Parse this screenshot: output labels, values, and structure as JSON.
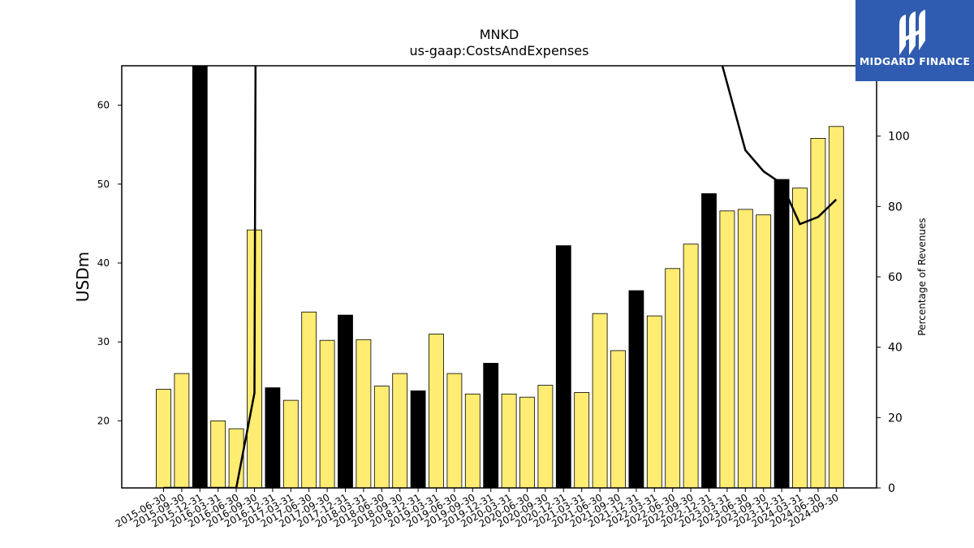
{
  "chart_data": {
    "type": "bar",
    "title": "MNKD",
    "subtitle": "us-gaap:CostsAndExpenses",
    "ylabel": "USDm",
    "ylabel_right": "Percentage of Revenues",
    "ylim": [
      11.5,
      65
    ],
    "ylim_right": [
      0,
      120
    ],
    "yticks": [
      20,
      30,
      40,
      50,
      60
    ],
    "yticks_right": [
      0,
      20,
      40,
      60,
      80,
      100
    ],
    "grid": false,
    "bar_colors": {
      "quarter": "#ffec72",
      "year_end": "#000000"
    },
    "categories": [
      "2015-06-30",
      "2015-09-30",
      "2015-12-31",
      "2016-03-31",
      "2016-06-30",
      "2016-09-30",
      "2016-12-31",
      "2017-03-31",
      "2017-06-30",
      "2017-09-30",
      "2017-12-31",
      "2018-03-31",
      "2018-06-30",
      "2018-09-30",
      "2018-12-31",
      "2019-03-31",
      "2019-06-30",
      "2019-09-30",
      "2019-12-31",
      "2020-03-31",
      "2020-06-30",
      "2020-09-30",
      "2020-12-31",
      "2021-03-31",
      "2021-06-30",
      "2021-09-30",
      "2021-12-31",
      "2022-03-31",
      "2022-06-30",
      "2022-09-30",
      "2022-12-31",
      "2023-03-31",
      "2023-06-30",
      "2023-09-30",
      "2023-12-31",
      "2024-03-31",
      "2024-06-30",
      "2024-09-30"
    ],
    "values": [
      24.0,
      26.0,
      66.0,
      20.0,
      19.0,
      44.2,
      24.2,
      22.6,
      33.8,
      30.2,
      33.4,
      30.3,
      24.4,
      26.0,
      23.8,
      31.0,
      26.0,
      23.4,
      27.3,
      23.4,
      23.0,
      24.5,
      42.2,
      23.6,
      33.6,
      28.9,
      36.5,
      33.3,
      39.3,
      42.4,
      48.8,
      46.6,
      46.8,
      46.1,
      50.6,
      49.5,
      55.8,
      57.3
    ],
    "year_end": [
      false,
      false,
      true,
      false,
      false,
      false,
      true,
      false,
      false,
      false,
      true,
      false,
      false,
      false,
      true,
      false,
      false,
      false,
      true,
      false,
      false,
      false,
      true,
      false,
      false,
      false,
      true,
      false,
      false,
      false,
      true,
      false,
      false,
      false,
      true,
      false,
      false,
      false
    ],
    "line_series": {
      "axis": "right",
      "color": "#000000",
      "values": [
        0,
        0,
        0,
        0,
        0,
        27,
        1600,
        null,
        null,
        null,
        null,
        null,
        null,
        null,
        null,
        null,
        null,
        null,
        null,
        null,
        null,
        null,
        null,
        null,
        null,
        null,
        null,
        null,
        null,
        null,
        null,
        115,
        96,
        90,
        86.5,
        75,
        77,
        82
      ]
    }
  },
  "logo": {
    "text": "MIDGARD FINANCE",
    "mark": "MF-monogram-icon",
    "color": "#2f5bb0"
  }
}
